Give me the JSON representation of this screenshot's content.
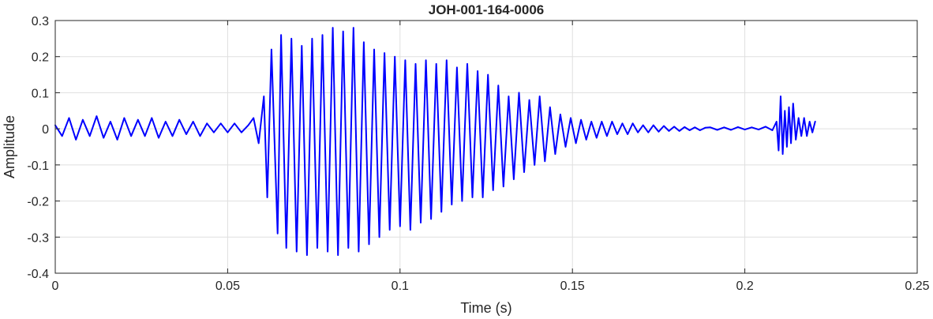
{
  "chart_data": {
    "type": "line",
    "title": "JOH-001-164-0006",
    "xlabel": "Time (s)",
    "ylabel": "Amplitude",
    "xlim": [
      0,
      0.25
    ],
    "ylim": [
      -0.4,
      0.3
    ],
    "grid": true,
    "x_ticks": [
      0,
      0.05,
      0.1,
      0.15,
      0.2,
      0.25
    ],
    "x_tick_labels": [
      "0",
      "0.05",
      "0.1",
      "0.15",
      "0.2",
      "0.25"
    ],
    "y_ticks": [
      -0.4,
      -0.3,
      -0.2,
      -0.1,
      0,
      0.1,
      0.2,
      0.3
    ],
    "y_tick_labels": [
      "-0.4",
      "-0.3",
      "-0.2",
      "-0.1",
      "0",
      "0.1",
      "0.2",
      "0.3"
    ],
    "line_color": "#0000ff",
    "series": [
      {
        "x": [
          0,
          0.002,
          0.004,
          0.006,
          0.008,
          0.01,
          0.012,
          0.014,
          0.016,
          0.018,
          0.02,
          0.022,
          0.024,
          0.026,
          0.028,
          0.03,
          0.032,
          0.034,
          0.036,
          0.038,
          0.04,
          0.042,
          0.044,
          0.046,
          0.048,
          0.05,
          0.052,
          0.054,
          0.056,
          0.0575,
          0.059,
          0.0605,
          0.0615,
          0.0627,
          0.0645,
          0.0655,
          0.067,
          0.0685,
          0.07,
          0.0715,
          0.073,
          0.0745,
          0.076,
          0.0775,
          0.079,
          0.0805,
          0.082,
          0.0835,
          0.085,
          0.0865,
          0.088,
          0.0895,
          0.091,
          0.0925,
          0.094,
          0.0955,
          0.097,
          0.0985,
          0.1,
          0.1015,
          0.103,
          0.1045,
          0.106,
          0.1075,
          0.109,
          0.1105,
          0.112,
          0.1135,
          0.115,
          0.1165,
          0.118,
          0.1195,
          0.121,
          0.1225,
          0.124,
          0.1255,
          0.127,
          0.1285,
          0.13,
          0.1315,
          0.133,
          0.1345,
          0.136,
          0.1375,
          0.139,
          0.1405,
          0.142,
          0.1435,
          0.145,
          0.1465,
          0.148,
          0.1495,
          0.151,
          0.1525,
          0.154,
          0.1555,
          0.157,
          0.1585,
          0.16,
          0.1615,
          0.163,
          0.1645,
          0.166,
          0.1675,
          0.169,
          0.1705,
          0.172,
          0.1735,
          0.175,
          0.1765,
          0.178,
          0.1795,
          0.181,
          0.1825,
          0.184,
          0.1855,
          0.187,
          0.1885,
          0.19,
          0.192,
          0.194,
          0.196,
          0.198,
          0.2,
          0.202,
          0.204,
          0.206,
          0.208,
          0.2092,
          0.2098,
          0.2104,
          0.211,
          0.2116,
          0.2122,
          0.2128,
          0.2134,
          0.214,
          0.2148,
          0.2156,
          0.2164,
          0.2172,
          0.218,
          0.2188,
          0.2196,
          0.2204
        ],
        "y": [
          0.01,
          -0.02,
          0.03,
          -0.03,
          0.025,
          -0.02,
          0.035,
          -0.025,
          0.02,
          -0.03,
          0.03,
          -0.02,
          0.025,
          -0.02,
          0.03,
          -0.025,
          0.02,
          -0.02,
          0.025,
          -0.015,
          0.02,
          -0.02,
          0.015,
          -0.01,
          0.015,
          -0.01,
          0.015,
          -0.01,
          0.01,
          0.03,
          -0.04,
          0.09,
          -0.19,
          0.22,
          -0.29,
          0.26,
          -0.33,
          0.25,
          -0.34,
          0.23,
          -0.35,
          0.25,
          -0.33,
          0.26,
          -0.34,
          0.28,
          -0.35,
          0.27,
          -0.33,
          0.28,
          -0.34,
          0.24,
          -0.32,
          0.22,
          -0.3,
          0.21,
          -0.28,
          0.2,
          -0.27,
          0.19,
          -0.28,
          0.18,
          -0.26,
          0.19,
          -0.25,
          0.18,
          -0.23,
          0.19,
          -0.21,
          0.17,
          -0.2,
          0.18,
          -0.19,
          0.16,
          -0.19,
          0.15,
          -0.17,
          0.12,
          -0.16,
          0.09,
          -0.14,
          0.1,
          -0.12,
          0.08,
          -0.1,
          0.09,
          -0.09,
          0.06,
          -0.07,
          0.04,
          -0.05,
          0.03,
          -0.04,
          0.025,
          -0.03,
          0.02,
          -0.025,
          0.02,
          -0.02,
          0.02,
          -0.015,
          0.015,
          -0.015,
          0.015,
          -0.01,
          0.01,
          -0.01,
          0.01,
          -0.008,
          0.008,
          -0.006,
          0.006,
          -0.006,
          0.005,
          -0.004,
          0.004,
          -0.004,
          0.003,
          0.004,
          -0.003,
          0.004,
          -0.003,
          0.005,
          -0.002,
          0.004,
          -0.002,
          0.006,
          -0.004,
          0.02,
          -0.06,
          0.09,
          -0.07,
          0.05,
          -0.05,
          0.06,
          -0.04,
          0.07,
          -0.03,
          0.03,
          -0.02,
          0.03,
          -0.02,
          0.02,
          -0.01,
          0.02
        ]
      }
    ]
  }
}
